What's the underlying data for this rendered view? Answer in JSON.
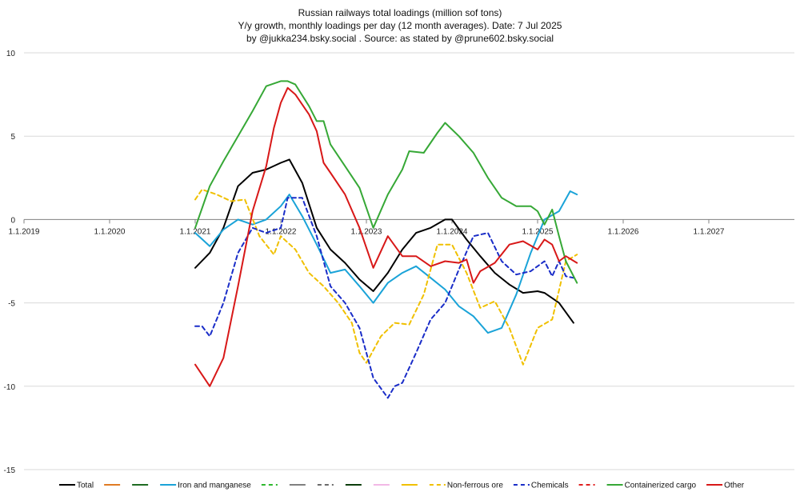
{
  "chart_data": {
    "type": "line",
    "title": [
      "Russian railways total loadings (million sof tons)",
      "Y/y growth, monthly loadings per day (12 month averages). Date: 7 Jul 2025",
      "by @jukka234.bsky.social . Source: as stated by @prune602.bsky.social"
    ],
    "xlabel": "",
    "ylabel": "",
    "ylim": [
      -15,
      10
    ],
    "yticks": [
      10,
      5,
      0,
      -5,
      -10,
      -15
    ],
    "xlim": [
      2019,
      2028
    ],
    "xticks": [
      {
        "value": 2019,
        "label": "1.1.2019"
      },
      {
        "value": 2020,
        "label": "1.1.2020"
      },
      {
        "value": 2021,
        "label": "1.1.2021"
      },
      {
        "value": 2022,
        "label": "1.1.2022"
      },
      {
        "value": 2023,
        "label": "1.1.2023"
      },
      {
        "value": 2024,
        "label": "1.1.2024"
      },
      {
        "value": 2025,
        "label": "1.1.2025"
      },
      {
        "value": 2026,
        "label": "1.1.2026"
      },
      {
        "value": 2027,
        "label": "1.1.2027"
      }
    ],
    "grid": true,
    "legend_position": "bottom",
    "legend": [
      {
        "name": "Total",
        "color": "#000000",
        "dash": "solid"
      },
      {
        "name": "",
        "color": "#e07b24",
        "dash": "solid"
      },
      {
        "name": "",
        "color": "#1e6b22",
        "dash": "solid"
      },
      {
        "name": "Iron and manganese",
        "color": "#1aa3d8",
        "dash": "solid"
      },
      {
        "name": "",
        "color": "#2db82d",
        "dash": "dashed"
      },
      {
        "name": "",
        "color": "#808080",
        "dash": "solid"
      },
      {
        "name": "",
        "color": "#6b6b6b",
        "dash": "dashed"
      },
      {
        "name": "",
        "color": "#0b3d0b",
        "dash": "solid"
      },
      {
        "name": "",
        "color": "#f2b8e6",
        "dash": "solid"
      },
      {
        "name": "",
        "color": "#f0c000",
        "dash": "solid"
      },
      {
        "name": "Non-ferrous ore",
        "color": "#f0c000",
        "dash": "dashed"
      },
      {
        "name": "Chemicals",
        "color": "#1a2dc8",
        "dash": "dashed"
      },
      {
        "name": "",
        "color": "#e02020",
        "dash": "dashed"
      },
      {
        "name": "Containerized cargo",
        "color": "#36a836",
        "dash": "solid"
      },
      {
        "name": "Other",
        "color": "#d81818",
        "dash": "solid"
      }
    ],
    "series": [
      {
        "name": "Total",
        "color": "#000000",
        "dash": "solid",
        "x": [
          2021.0,
          2021.17,
          2021.33,
          2021.5,
          2021.67,
          2021.83,
          2022.0,
          2022.1,
          2022.25,
          2022.42,
          2022.58,
          2022.75,
          2022.92,
          2023.08,
          2023.25,
          2023.42,
          2023.58,
          2023.75,
          2023.92,
          2024.0,
          2024.17,
          2024.33,
          2024.5,
          2024.67,
          2024.83,
          2025.0,
          2025.08,
          2025.25,
          2025.42
        ],
        "values": [
          -2.9,
          -2.0,
          -0.5,
          2.0,
          2.8,
          3.0,
          3.4,
          3.6,
          2.2,
          -0.5,
          -1.8,
          -2.6,
          -3.6,
          -4.3,
          -3.2,
          -1.8,
          -0.8,
          -0.5,
          0.0,
          0.0,
          -1.2,
          -2.2,
          -3.2,
          -3.9,
          -4.4,
          -4.3,
          -4.4,
          -5.0,
          -6.2
        ]
      },
      {
        "name": "Iron and manganese",
        "color": "#1aa3d8",
        "dash": "solid",
        "x": [
          2021.0,
          2021.17,
          2021.33,
          2021.5,
          2021.67,
          2021.83,
          2022.0,
          2022.1,
          2022.25,
          2022.42,
          2022.58,
          2022.75,
          2022.92,
          2023.08,
          2023.25,
          2023.42,
          2023.58,
          2023.75,
          2023.92,
          2024.08,
          2024.25,
          2024.42,
          2024.58,
          2024.75,
          2024.92,
          2025.08,
          2025.25,
          2025.38,
          2025.46
        ],
        "values": [
          -0.8,
          -1.6,
          -0.6,
          0.0,
          -0.3,
          0.0,
          0.8,
          1.5,
          0.2,
          -1.5,
          -3.2,
          -3.0,
          -4.0,
          -5.0,
          -3.8,
          -3.2,
          -2.8,
          -3.5,
          -4.2,
          -5.2,
          -5.8,
          -6.8,
          -6.5,
          -4.5,
          -2.0,
          0.0,
          0.5,
          1.7,
          1.5
        ]
      },
      {
        "name": "Non-ferrous ore",
        "color": "#f0c000",
        "dash": "dashed",
        "x": [
          2021.0,
          2021.08,
          2021.25,
          2021.42,
          2021.58,
          2021.75,
          2021.92,
          2022.0,
          2022.17,
          2022.33,
          2022.5,
          2022.67,
          2022.83,
          2022.92,
          2023.0,
          2023.17,
          2023.33,
          2023.5,
          2023.67,
          2023.83,
          2024.0,
          2024.17,
          2024.33,
          2024.5,
          2024.67,
          2024.83,
          2025.0,
          2025.17,
          2025.33,
          2025.46
        ],
        "values": [
          1.2,
          1.8,
          1.5,
          1.1,
          1.2,
          -1.0,
          -2.1,
          -1.0,
          -1.8,
          -3.2,
          -4.0,
          -5.0,
          -6.2,
          -8.0,
          -8.6,
          -7.0,
          -6.2,
          -6.3,
          -4.5,
          -1.5,
          -1.5,
          -3.2,
          -5.3,
          -4.9,
          -6.5,
          -8.7,
          -6.5,
          -6.0,
          -2.5,
          -2.1
        ]
      },
      {
        "name": "Chemicals",
        "color": "#1a2dc8",
        "dash": "dashed",
        "x": [
          2021.0,
          2021.08,
          2021.17,
          2021.33,
          2021.5,
          2021.67,
          2021.83,
          2022.0,
          2022.08,
          2022.25,
          2022.42,
          2022.58,
          2022.75,
          2022.92,
          2023.08,
          2023.25,
          2023.33,
          2023.42,
          2023.58,
          2023.75,
          2023.92,
          2024.08,
          2024.25,
          2024.42,
          2024.58,
          2024.75,
          2024.92,
          2025.08,
          2025.17,
          2025.25,
          2025.33,
          2025.42
        ],
        "values": [
          -6.4,
          -6.4,
          -7.0,
          -5.0,
          -2.0,
          -0.5,
          -0.8,
          -0.5,
          1.3,
          1.3,
          -1.0,
          -4.0,
          -5.0,
          -6.5,
          -9.5,
          -10.7,
          -10.0,
          -9.8,
          -8.0,
          -6.0,
          -5.0,
          -3.0,
          -1.0,
          -0.8,
          -2.5,
          -3.3,
          -3.1,
          -2.5,
          -3.4,
          -2.5,
          -3.4,
          -3.5
        ]
      },
      {
        "name": "Containerized cargo",
        "color": "#36a836",
        "dash": "solid",
        "x": [
          2021.0,
          2021.17,
          2021.33,
          2021.5,
          2021.67,
          2021.83,
          2022.0,
          2022.08,
          2022.17,
          2022.33,
          2022.42,
          2022.5,
          2022.58,
          2022.75,
          2022.92,
          2023.08,
          2023.25,
          2023.42,
          2023.5,
          2023.67,
          2023.83,
          2023.92,
          2024.08,
          2024.25,
          2024.42,
          2024.58,
          2024.75,
          2024.92,
          2025.0,
          2025.08,
          2025.17,
          2025.25,
          2025.33,
          2025.46
        ],
        "values": [
          -0.5,
          2.0,
          3.5,
          5.0,
          6.5,
          8.0,
          8.3,
          8.3,
          8.1,
          6.8,
          5.9,
          5.9,
          4.5,
          3.2,
          1.9,
          -0.5,
          1.5,
          3.0,
          4.1,
          4.0,
          5.2,
          5.8,
          5.0,
          4.0,
          2.5,
          1.3,
          0.8,
          0.8,
          0.5,
          -0.3,
          0.6,
          -1.0,
          -2.5,
          -3.8
        ]
      },
      {
        "name": "Other",
        "color": "#d81818",
        "dash": "solid",
        "x": [
          2021.0,
          2021.17,
          2021.33,
          2021.5,
          2021.67,
          2021.83,
          2021.92,
          2022.0,
          2022.08,
          2022.17,
          2022.33,
          2022.42,
          2022.5,
          2022.58,
          2022.75,
          2022.92,
          2023.08,
          2023.25,
          2023.42,
          2023.58,
          2023.75,
          2023.92,
          2024.08,
          2024.17,
          2024.25,
          2024.33,
          2024.5,
          2024.67,
          2024.83,
          2025.0,
          2025.08,
          2025.17,
          2025.25,
          2025.33,
          2025.46
        ],
        "values": [
          -8.7,
          -10.0,
          -8.3,
          -4.0,
          0.5,
          3.2,
          5.5,
          7.0,
          7.9,
          7.5,
          6.3,
          5.3,
          3.4,
          2.8,
          1.5,
          -0.5,
          -2.9,
          -1.0,
          -2.2,
          -2.2,
          -2.8,
          -2.5,
          -2.6,
          -2.4,
          -3.8,
          -3.1,
          -2.6,
          -1.5,
          -1.3,
          -1.8,
          -1.2,
          -1.5,
          -2.5,
          -2.2,
          -2.6
        ]
      }
    ]
  }
}
